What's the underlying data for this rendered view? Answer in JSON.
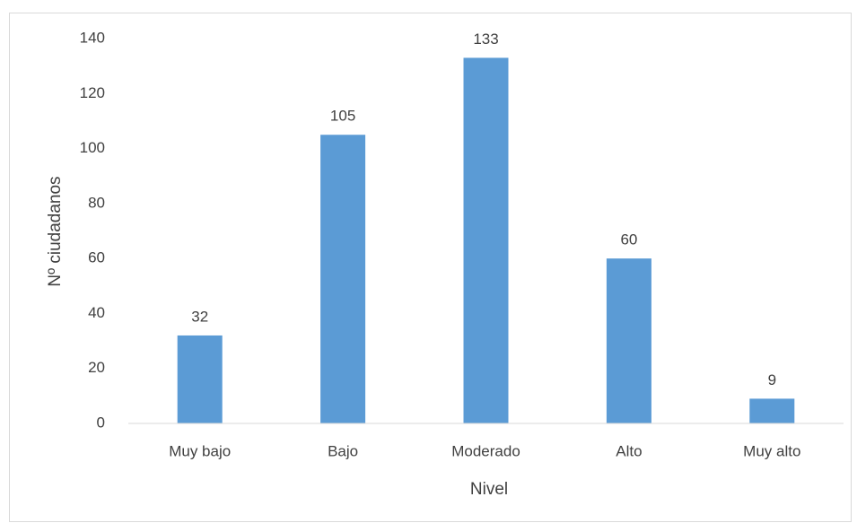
{
  "chart_data": {
    "type": "bar",
    "categories": [
      "Muy bajo",
      "Bajo",
      "Moderado",
      "Alto",
      "Muy alto"
    ],
    "values": [
      32,
      105,
      133,
      60,
      9
    ],
    "color": "#5b9bd5",
    "x_label": "Nivel",
    "y_label": "Nº ciudadanos",
    "ylim": [
      0,
      140
    ],
    "yticks": [
      0,
      20,
      40,
      60,
      80,
      100,
      120,
      140
    ],
    "grid": false,
    "data_labels": true
  }
}
